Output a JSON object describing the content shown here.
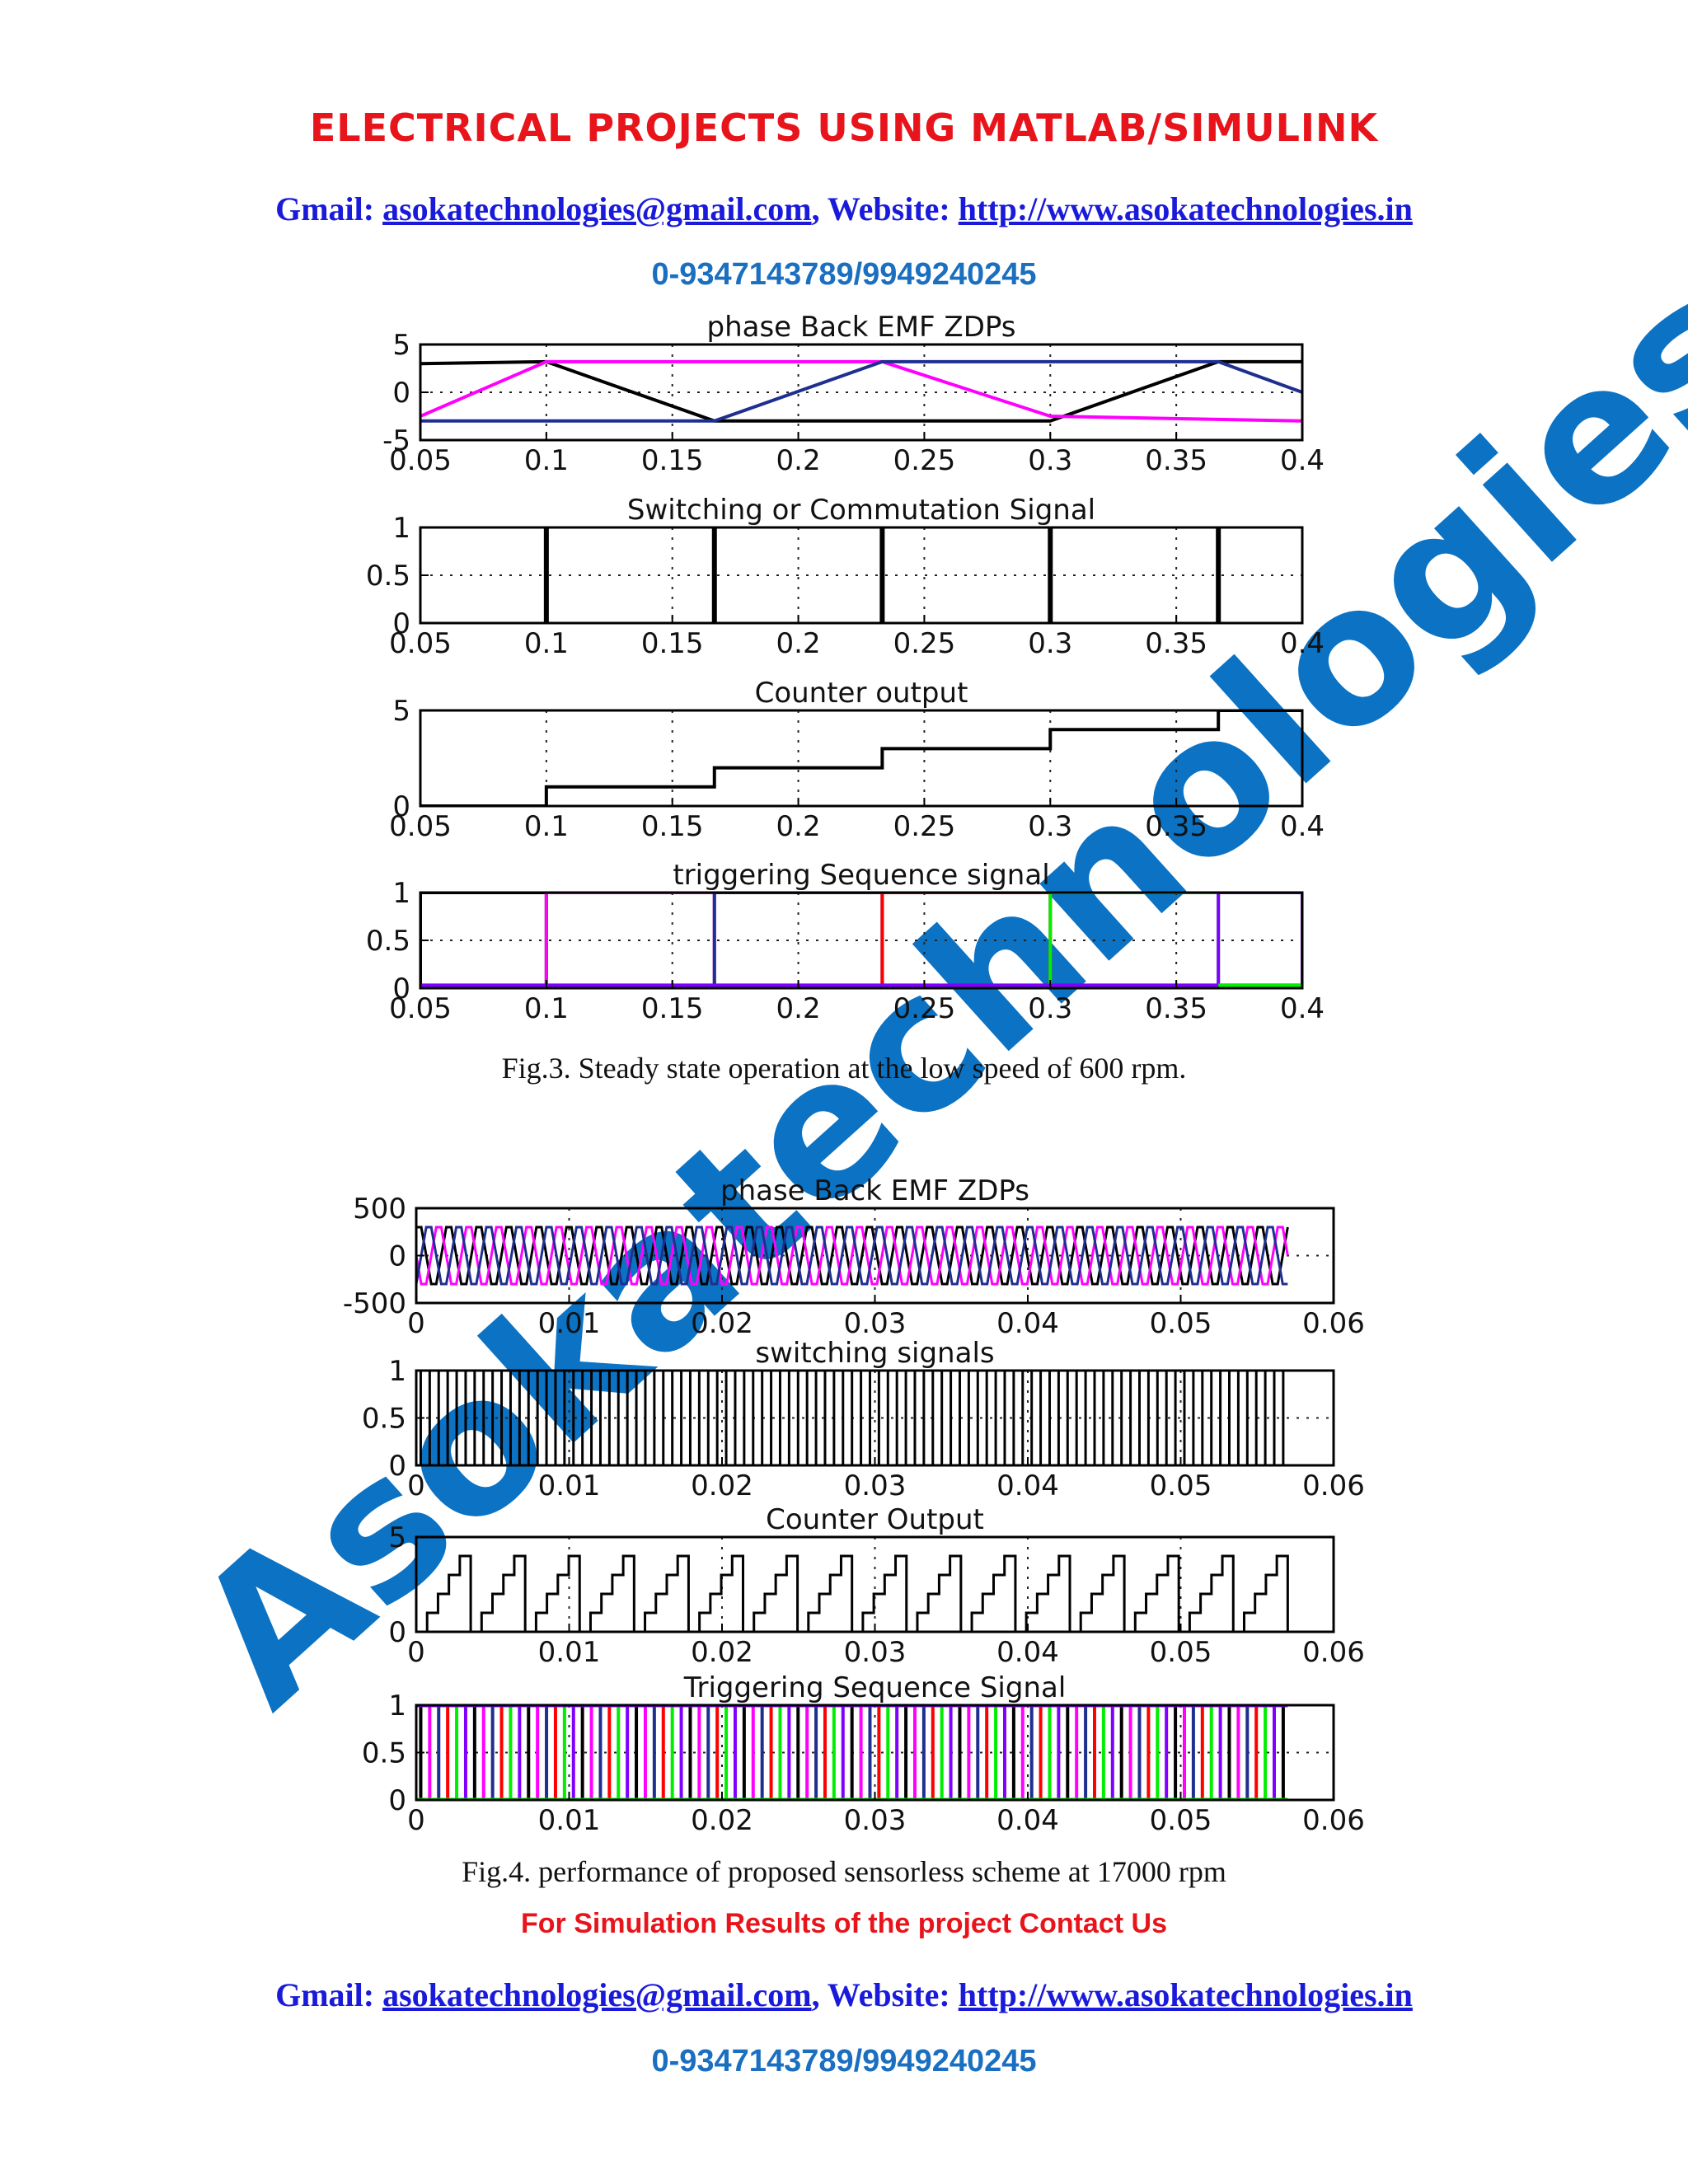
{
  "header": {
    "banner": "ELECTRICAL PROJECTS USING MATLAB/SIMULINK",
    "gmail_label": "Gmail: ",
    "gmail": "asokatechnologies@gmail.com",
    "website_label": ", Website: ",
    "website": "http://www.asokatechnologies.in",
    "phone": "0-9347143789/9949240245"
  },
  "footer": {
    "note": "For Simulation Results of the project Contact Us",
    "gmail_label": "Gmail: ",
    "gmail": "asokatechnologies@gmail.com",
    "website_label": ", Website: ",
    "website": "http://www.asokatechnologies.in",
    "phone": "0-9347143789/9949240245"
  },
  "watermark": {
    "text": "Asokatechnologies",
    "color": "#0b72c4"
  },
  "figures": [
    {
      "caption": "Fig.3. Steady state operation at the low speed of 600 rpm.",
      "panels": [
        {
          "title": "phase Back EMF ZDPs",
          "xticks": [
            "0.05",
            "0.1",
            "0.15",
            "0.2",
            "0.25",
            "0.3",
            "0.35",
            "0.4"
          ],
          "yticks": [
            "5",
            "0",
            "-5"
          ]
        },
        {
          "title": "Switching or Commutation Signal",
          "xticks": [
            "0.05",
            "0.1",
            "0.15",
            "0.2",
            "0.25",
            "0.3",
            "0.35",
            "0.4"
          ],
          "yticks": [
            "1",
            "0.5",
            "0"
          ]
        },
        {
          "title": "Counter output",
          "xticks": [
            "0.05",
            "0.1",
            "0.15",
            "0.2",
            "0.25",
            "0.3",
            "0.35",
            "0.4"
          ],
          "yticks": [
            "5",
            "0"
          ]
        },
        {
          "title": "triggering Sequence signal",
          "xticks": [
            "0.05",
            "0.1",
            "0.15",
            "0.2",
            "0.25",
            "0.3",
            "0.35",
            "0.4"
          ],
          "yticks": [
            "1",
            "0.5",
            "0"
          ]
        }
      ]
    },
    {
      "caption": "Fig.4. performance of proposed sensorless scheme at 17000 rpm",
      "panels": [
        {
          "title": "phase Back EMF ZDPs",
          "xticks": [
            "0",
            "0.01",
            "0.02",
            "0.03",
            "0.04",
            "0.05",
            "0.06"
          ],
          "yticks": [
            "500",
            "0",
            "-500"
          ]
        },
        {
          "title": "switching signals",
          "xticks": [
            "0",
            "0.01",
            "0.02",
            "0.03",
            "0.04",
            "0.05",
            "0.06"
          ],
          "yticks": [
            "1",
            "0.5",
            "0"
          ]
        },
        {
          "title": "Counter Output",
          "xticks": [
            "0",
            "0.01",
            "0.02",
            "0.03",
            "0.04",
            "0.05",
            "0.06"
          ],
          "yticks": [
            "5",
            "0"
          ]
        },
        {
          "title": "Triggering Sequence Signal",
          "xticks": [
            "0",
            "0.01",
            "0.02",
            "0.03",
            "0.04",
            "0.05",
            "0.06"
          ],
          "yticks": [
            "1",
            "0.5",
            "0"
          ]
        }
      ]
    }
  ],
  "chart_data": [
    {
      "type": "line",
      "title": "phase Back EMF ZDPs",
      "xlim": [
        0.05,
        0.4
      ],
      "ylim": [
        -5,
        5
      ],
      "series": [
        {
          "color": "#000000",
          "x": [
            0.05,
            0.1,
            0.1667,
            0.3,
            0.3667,
            0.4
          ],
          "y": [
            3,
            3.2,
            -3,
            -3,
            3.2,
            3.2
          ]
        },
        {
          "color": "#ff00ff",
          "x": [
            0.05,
            0.1,
            0.2333,
            0.3,
            0.4
          ],
          "y": [
            -2.5,
            3.2,
            3.2,
            -2.5,
            -3
          ]
        },
        {
          "color": "#1f2f8f",
          "x": [
            0.05,
            0.1667,
            0.2333,
            0.3667,
            0.4
          ],
          "y": [
            -3,
            -3,
            3.2,
            3.2,
            0
          ]
        }
      ],
      "grid": true
    },
    {
      "type": "line",
      "title": "Switching or Commutation Signal",
      "xlim": [
        0.05,
        0.4
      ],
      "ylim": [
        0,
        1
      ],
      "pulses_at": [
        0.1,
        0.1667,
        0.2333,
        0.3,
        0.3667
      ],
      "grid": true
    },
    {
      "type": "line",
      "title": "Counter output",
      "xlim": [
        0.05,
        0.4
      ],
      "ylim": [
        0,
        5
      ],
      "series": [
        {
          "color": "#000000",
          "x": [
            0.05,
            0.1,
            0.1667,
            0.2333,
            0.3,
            0.3667,
            0.4
          ],
          "y": [
            0,
            1,
            2,
            3,
            4,
            5,
            5
          ]
        }
      ],
      "grid": true
    },
    {
      "type": "line",
      "title": "triggering Sequence signal",
      "xlim": [
        0.05,
        0.4
      ],
      "ylim": [
        0,
        1
      ],
      "series": [
        {
          "color": "#000000",
          "x": [
            0.05,
            0.1
          ],
          "y": [
            1,
            1
          ]
        },
        {
          "color": "#ff00ff",
          "x": [
            0.1,
            0.1667
          ],
          "y": [
            1,
            1
          ]
        },
        {
          "color": "#1f2f8f",
          "x": [
            0.1667,
            0.2333
          ],
          "y": [
            1,
            1
          ]
        },
        {
          "color": "#ff0000",
          "x": [
            0.2333,
            0.3
          ],
          "y": [
            1,
            1
          ]
        },
        {
          "color": "#00ee00",
          "x": [
            0.3,
            0.3667
          ],
          "y": [
            1,
            1
          ]
        },
        {
          "color": "#7f00ff",
          "x": [
            0.3667,
            0.4
          ],
          "y": [
            1,
            1
          ]
        }
      ],
      "grid": true
    },
    {
      "type": "line",
      "title": "phase Back EMF ZDPs",
      "xlim": [
        0,
        0.06
      ],
      "ylim": [
        -500,
        500
      ],
      "signal_end": 0.057,
      "cycles": 29,
      "series_colors": [
        "#000000",
        "#ff00ff",
        "#1f2f8f"
      ],
      "amplitude": 300,
      "grid": true
    },
    {
      "type": "line",
      "title": "switching signals",
      "xlim": [
        0,
        0.06
      ],
      "ylim": [
        0,
        1
      ],
      "signal_end": 0.057,
      "pulse_count": 97,
      "grid": true
    },
    {
      "type": "line",
      "title": "Counter Output",
      "xlim": [
        0,
        0.06
      ],
      "ylim": [
        0,
        5
      ],
      "signal_end": 0.057,
      "sawtooth_cycles": 16,
      "max": 4,
      "grid": true
    },
    {
      "type": "line",
      "title": "Triggering Sequence Signal",
      "xlim": [
        0,
        0.06
      ],
      "ylim": [
        0,
        1
      ],
      "signal_end": 0.057,
      "pulse_count": 97,
      "series_colors": [
        "#000000",
        "#ff00ff",
        "#1f2f8f",
        "#ff0000",
        "#00ee00",
        "#7f00ff"
      ],
      "grid": true
    }
  ]
}
